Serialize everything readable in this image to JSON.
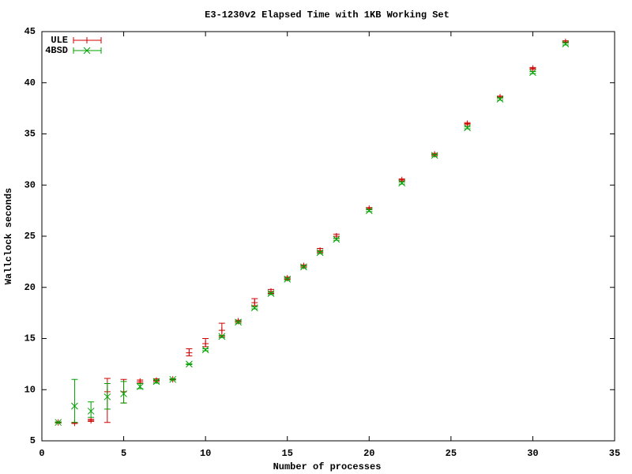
{
  "chart_data": {
    "type": "errorbar",
    "title": "E3-1230v2 Elapsed Time with 1KB Working Set",
    "x_label": "Number of processes",
    "y_label": "Wallclock seconds",
    "x": [
      1,
      2,
      3,
      4,
      5,
      6,
      7,
      8,
      9,
      10,
      11,
      12,
      13,
      14,
      15,
      16,
      17,
      18,
      20,
      22,
      24,
      26,
      28,
      30,
      32
    ],
    "xlim": [
      0,
      35
    ],
    "xticks": [
      0,
      5,
      10,
      15,
      20,
      25,
      30,
      35
    ],
    "ylim": [
      5,
      45
    ],
    "yticks": [
      5,
      10,
      15,
      20,
      25,
      30,
      35,
      40,
      45
    ],
    "legend": "top-left",
    "series": [
      {
        "name": "ULE",
        "color": "#d00000",
        "marker": "plus",
        "values": [
          6.8,
          6.75,
          7.0,
          9.8,
          9.8,
          10.8,
          10.9,
          11.0,
          13.6,
          14.5,
          15.8,
          16.7,
          18.5,
          19.6,
          20.9,
          22.1,
          23.6,
          25.0,
          27.7,
          30.5,
          33.0,
          36.0,
          38.6,
          41.4,
          44.0
        ],
        "y_low": [
          6.75,
          6.7,
          6.9,
          6.8,
          8.7,
          10.65,
          10.8,
          10.95,
          13.3,
          14.2,
          15.2,
          16.6,
          18.2,
          19.4,
          20.8,
          22.0,
          23.4,
          24.8,
          27.6,
          30.4,
          32.9,
          35.9,
          38.5,
          41.3,
          43.9
        ],
        "y_high": [
          6.85,
          6.8,
          7.1,
          11.1,
          11.0,
          10.95,
          11.05,
          11.05,
          14.0,
          15.0,
          16.5,
          16.8,
          18.9,
          19.8,
          21.0,
          22.2,
          23.8,
          25.2,
          27.8,
          30.6,
          33.1,
          36.1,
          38.7,
          41.5,
          44.1
        ]
      },
      {
        "name": "4BSD",
        "color": "#00a000",
        "marker": "cross",
        "values": [
          6.8,
          8.4,
          7.9,
          9.3,
          9.6,
          10.3,
          10.8,
          11.0,
          12.5,
          13.9,
          15.2,
          16.6,
          18.0,
          19.4,
          20.8,
          22.0,
          23.4,
          24.7,
          27.5,
          30.2,
          32.9,
          35.6,
          38.4,
          41.0,
          43.8
        ],
        "y_low": [
          6.75,
          6.8,
          7.3,
          8.1,
          8.7,
          10.1,
          10.65,
          10.95,
          12.45,
          13.8,
          15.1,
          16.5,
          17.9,
          19.3,
          20.7,
          21.9,
          23.3,
          24.6,
          27.4,
          30.1,
          32.8,
          35.5,
          38.3,
          40.9,
          43.7
        ],
        "y_high": [
          6.85,
          11.0,
          8.8,
          10.6,
          10.8,
          10.6,
          10.95,
          11.05,
          12.55,
          14.0,
          15.3,
          16.7,
          18.1,
          19.5,
          20.9,
          22.1,
          23.5,
          24.8,
          27.6,
          30.3,
          33.0,
          35.7,
          38.5,
          41.1,
          43.9
        ]
      }
    ]
  }
}
